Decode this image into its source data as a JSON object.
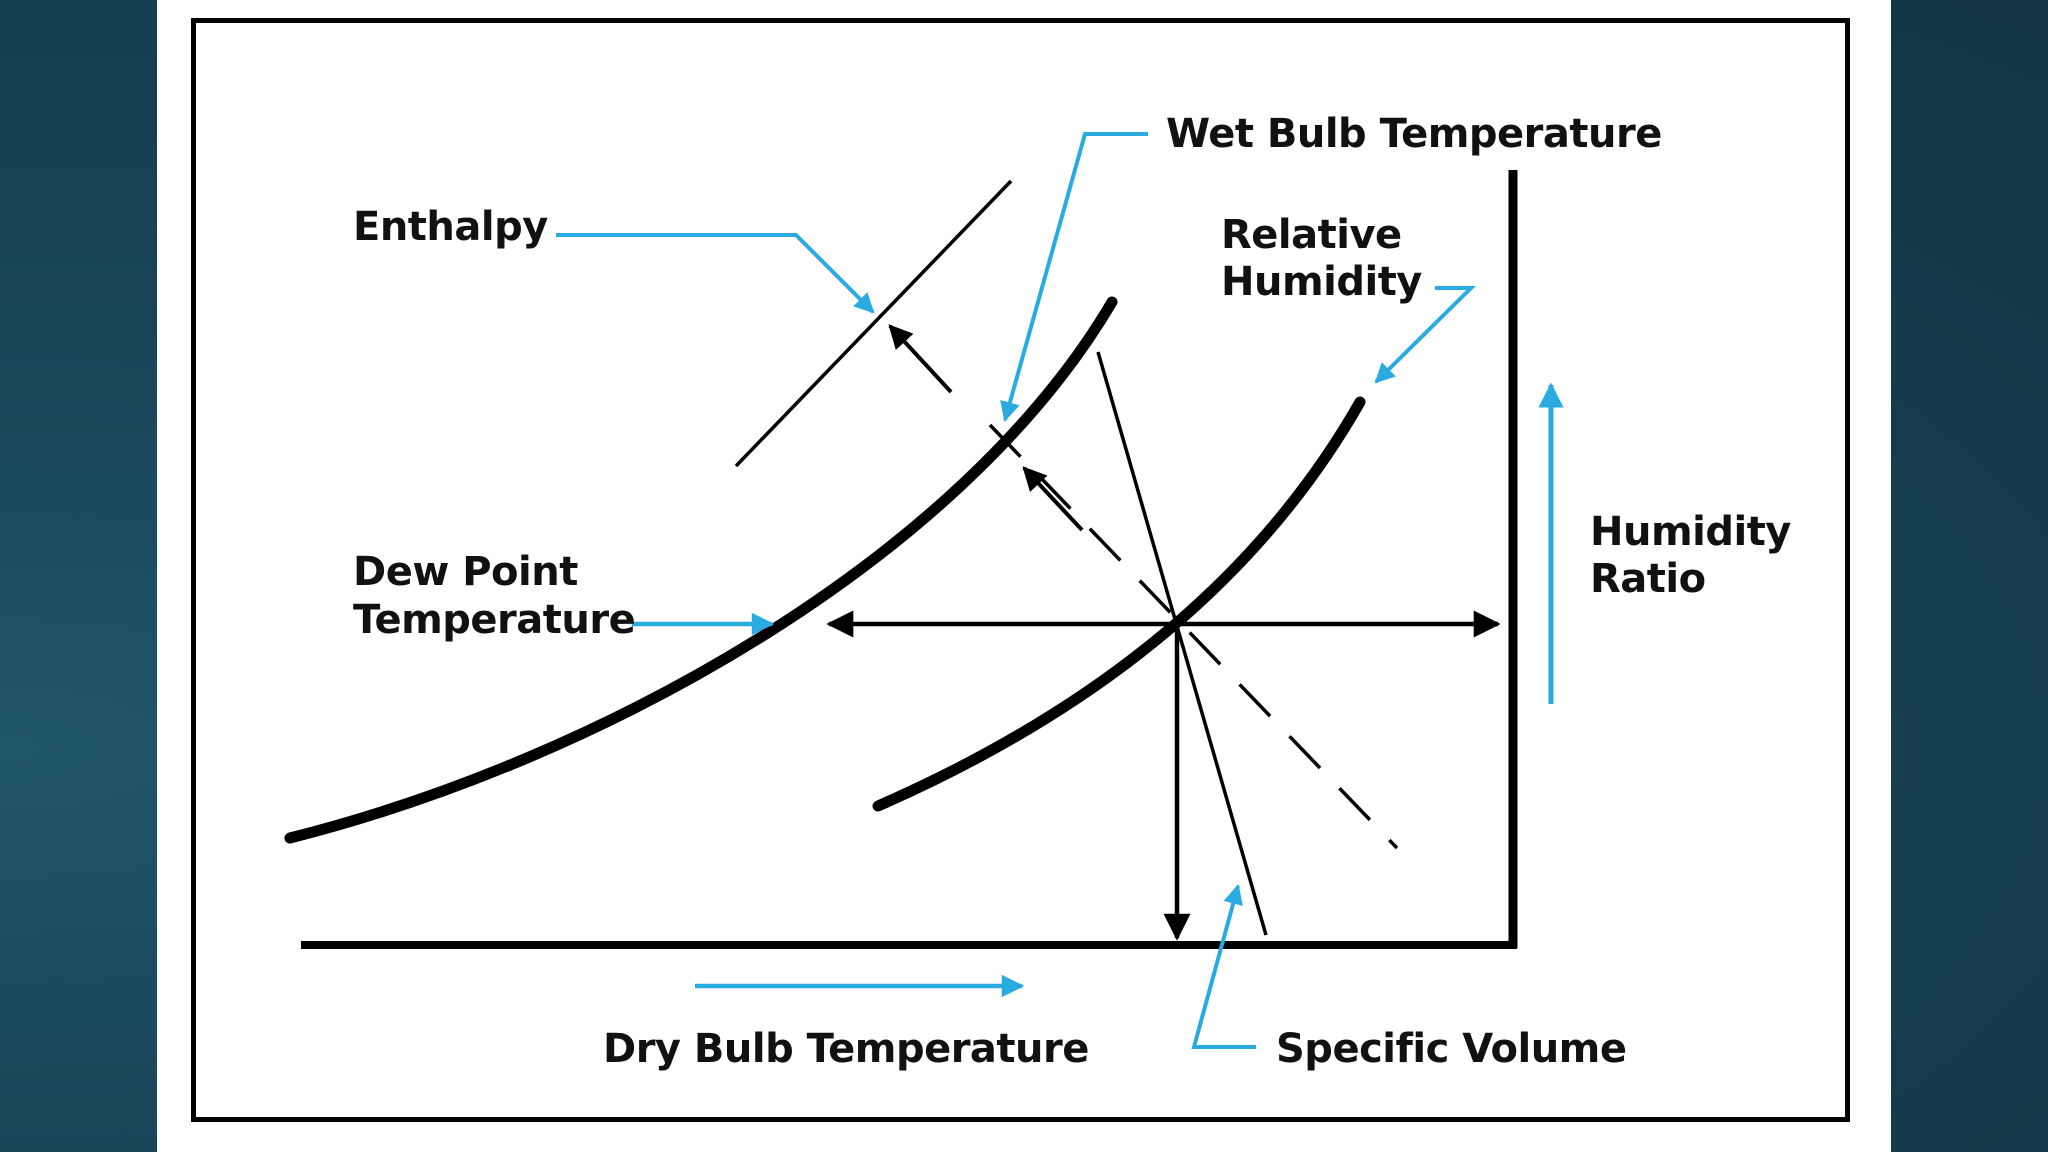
{
  "diagram": {
    "labels": {
      "wet_bulb": "Wet Bulb Temperature",
      "enthalpy": "Enthalpy",
      "relative_humidity_1": "Relative",
      "relative_humidity_2": "Humidity",
      "dew_point_1": "Dew Point",
      "dew_point_2": "Temperature",
      "humidity_ratio_1": "Humidity",
      "humidity_ratio_2": "Ratio",
      "dry_bulb": "Dry Bulb Temperature",
      "specific_volume": "Specific Volume"
    },
    "colors": {
      "accent": "#29abe2",
      "ink": "#000000",
      "background": "#163e4e",
      "card": "#ffffff"
    }
  }
}
